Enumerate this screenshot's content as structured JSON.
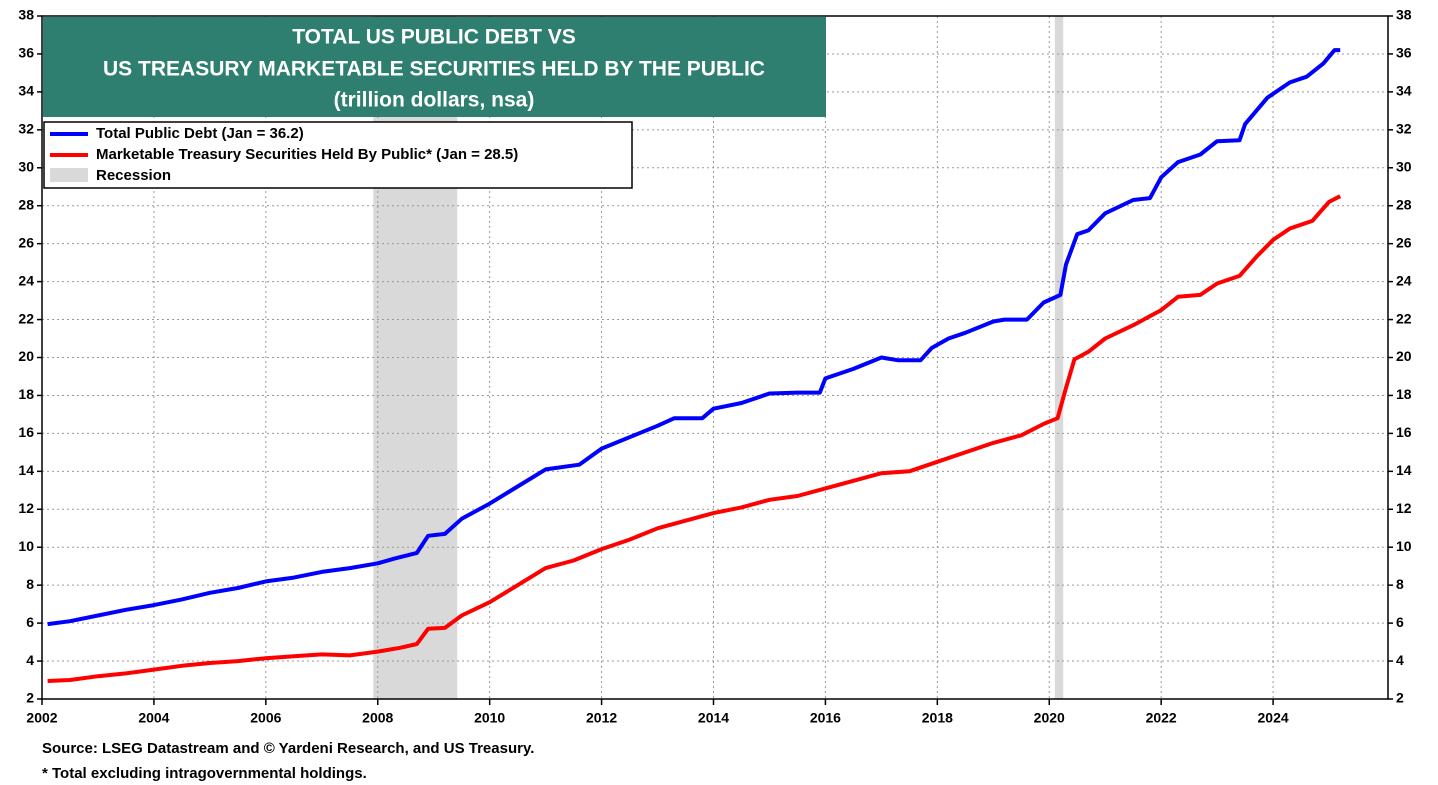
{
  "chart_data": {
    "type": "line",
    "title": [
      "TOTAL US PUBLIC DEBT VS",
      "US TREASURY MARKETABLE SECURITIES HELD BY THE PUBLIC"
    ],
    "subtitle": "(trillion dollars, nsa)",
    "title_color": "#2e7f6f",
    "xlim": [
      2002,
      2026
    ],
    "xticks": [
      2002,
      2004,
      2006,
      2008,
      2010,
      2012,
      2014,
      2016,
      2018,
      2020,
      2022,
      2024
    ],
    "ylim": [
      2,
      38
    ],
    "yticks": [
      2,
      4,
      6,
      8,
      10,
      12,
      14,
      16,
      18,
      20,
      22,
      24,
      26,
      28,
      30,
      32,
      34,
      36,
      38
    ],
    "grid": true,
    "legend": "top-left",
    "recession": {
      "name": "Recession",
      "color": "#d9d9d9",
      "periods": [
        [
          2007.92,
          2009.42
        ],
        [
          2020.1,
          2020.25
        ]
      ]
    },
    "series": [
      {
        "name": "Total Public Debt (Jan = 36.2)",
        "color": "#0000ff",
        "x": [
          2002.1,
          2002.5,
          2003,
          2003.5,
          2004,
          2004.5,
          2005,
          2005.5,
          2006,
          2006.5,
          2007,
          2007.5,
          2008,
          2008.3,
          2008.7,
          2008.9,
          2009.2,
          2009.5,
          2010,
          2010.5,
          2011,
          2011.6,
          2012,
          2012.5,
          2013,
          2013.3,
          2013.8,
          2014,
          2014.5,
          2015,
          2015.5,
          2015.9,
          2016,
          2016.5,
          2017,
          2017.3,
          2017.7,
          2017.9,
          2018.2,
          2018.5,
          2019,
          2019.2,
          2019.6,
          2019.9,
          2020.2,
          2020.3,
          2020.5,
          2020.7,
          2021,
          2021.5,
          2021.8,
          2022,
          2022.3,
          2022.7,
          2023,
          2023.4,
          2023.5,
          2023.9,
          2024.3,
          2024.6,
          2024.9,
          2025.1,
          2025.2
        ],
        "values": [
          5.95,
          6.1,
          6.4,
          6.7,
          6.95,
          7.25,
          7.6,
          7.85,
          8.2,
          8.4,
          8.7,
          8.9,
          9.15,
          9.4,
          9.7,
          10.6,
          10.7,
          11.5,
          12.3,
          13.2,
          14.1,
          14.35,
          15.2,
          15.8,
          16.4,
          16.8,
          16.8,
          17.3,
          17.6,
          18.1,
          18.15,
          18.15,
          18.9,
          19.4,
          20.0,
          19.85,
          19.85,
          20.5,
          21.0,
          21.3,
          21.9,
          22.0,
          22.0,
          22.9,
          23.3,
          24.9,
          26.5,
          26.7,
          27.6,
          28.3,
          28.4,
          29.5,
          30.3,
          30.7,
          31.4,
          31.45,
          32.3,
          33.7,
          34.5,
          34.8,
          35.5,
          36.2,
          36.2
        ]
      },
      {
        "name": "Marketable Treasury Securities Held By Public* (Jan = 28.5)",
        "color": "#ff0000",
        "x": [
          2002.1,
          2002.5,
          2003,
          2003.5,
          2004,
          2004.5,
          2005,
          2005.5,
          2006,
          2006.5,
          2007,
          2007.5,
          2008,
          2008.4,
          2008.7,
          2008.9,
          2009.2,
          2009.5,
          2010,
          2010.5,
          2011,
          2011.5,
          2012,
          2012.5,
          2013,
          2013.5,
          2014,
          2014.5,
          2015,
          2015.5,
          2016,
          2016.5,
          2017,
          2017.5,
          2018,
          2018.5,
          2019,
          2019.5,
          2019.9,
          2020.15,
          2020.3,
          2020.45,
          2020.7,
          2021,
          2021.5,
          2022,
          2022.3,
          2022.7,
          2023,
          2023.4,
          2023.7,
          2024,
          2024.3,
          2024.7,
          2025.0,
          2025.2
        ],
        "values": [
          2.95,
          3.0,
          3.2,
          3.35,
          3.55,
          3.75,
          3.9,
          4.0,
          4.15,
          4.25,
          4.35,
          4.3,
          4.5,
          4.7,
          4.9,
          5.7,
          5.75,
          6.4,
          7.1,
          8.0,
          8.9,
          9.3,
          9.9,
          10.4,
          11.0,
          11.4,
          11.8,
          12.1,
          12.5,
          12.7,
          13.1,
          13.5,
          13.9,
          14.0,
          14.5,
          15.0,
          15.5,
          15.9,
          16.5,
          16.8,
          18.4,
          19.9,
          20.3,
          21.0,
          21.7,
          22.5,
          23.2,
          23.3,
          23.9,
          24.3,
          25.3,
          26.2,
          26.8,
          27.2,
          28.2,
          28.5
        ]
      }
    ],
    "notes": [
      "Source: LSEG Datastream and © Yardeni Research, and US Treasury.",
      "* Total excluding intragovernmental holdings."
    ]
  }
}
